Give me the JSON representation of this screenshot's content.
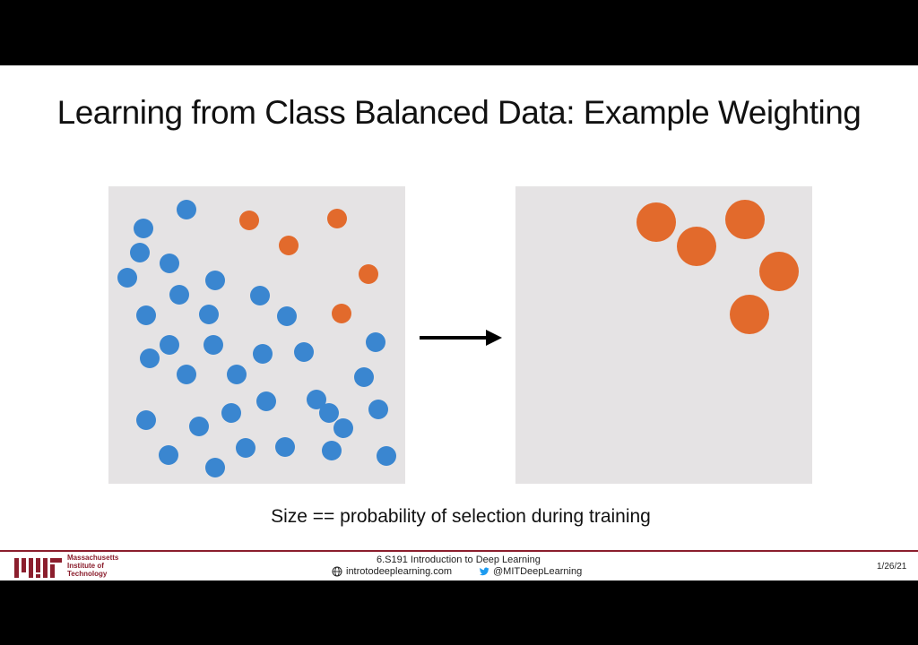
{
  "slide": {
    "title": "Learning from Class Balanced Data: Example Weighting",
    "caption": "Size == probability of selection during training"
  },
  "colors": {
    "blue": "#3a86d0",
    "orange": "#e26a2c",
    "panel_bg": "#e5e3e4",
    "mit_red": "#8b1e2d"
  },
  "footer": {
    "institution": [
      "Massachusetts",
      "Institute of",
      "Technology"
    ],
    "course": "6.S191 Introduction to Deep Learning",
    "website": "introtodeeplearning.com",
    "twitter": "@MITDeepLearning",
    "date": "1/26/21",
    "icons": [
      "globe-icon",
      "twitter-bird-icon",
      "mit-logo"
    ]
  }
}
